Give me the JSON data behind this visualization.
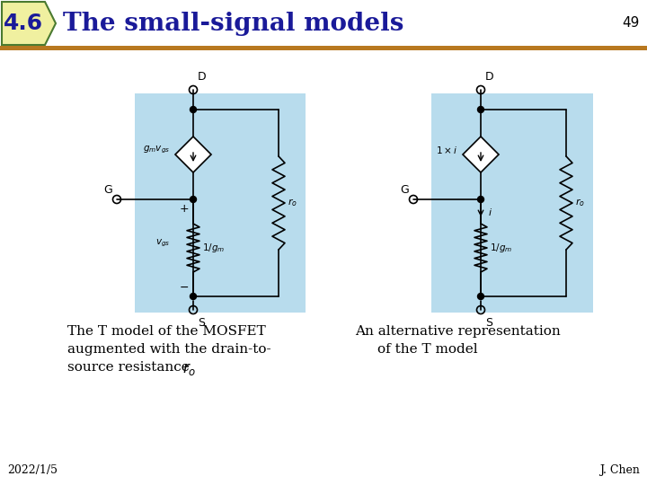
{
  "title": "The small-signal models",
  "title_num": "4.6",
  "slide_number": "49",
  "footer_left": "2022/1/5",
  "footer_right": "J. Chen",
  "title_bg_color": "#f0f0a0",
  "title_text_color": "#1a1a99",
  "title_bar_color": "#b87820",
  "title_badge_edge_color": "#4a7a30",
  "circuit_bg_color": "#b8dced",
  "caption1_line1": "The T model of the MOSFET",
  "caption1_line2": "augmented with the drain-to-",
  "caption1_line3": "source resistance ",
  "caption2_line1": "An alternative representation",
  "caption2_line2": "of the T model"
}
